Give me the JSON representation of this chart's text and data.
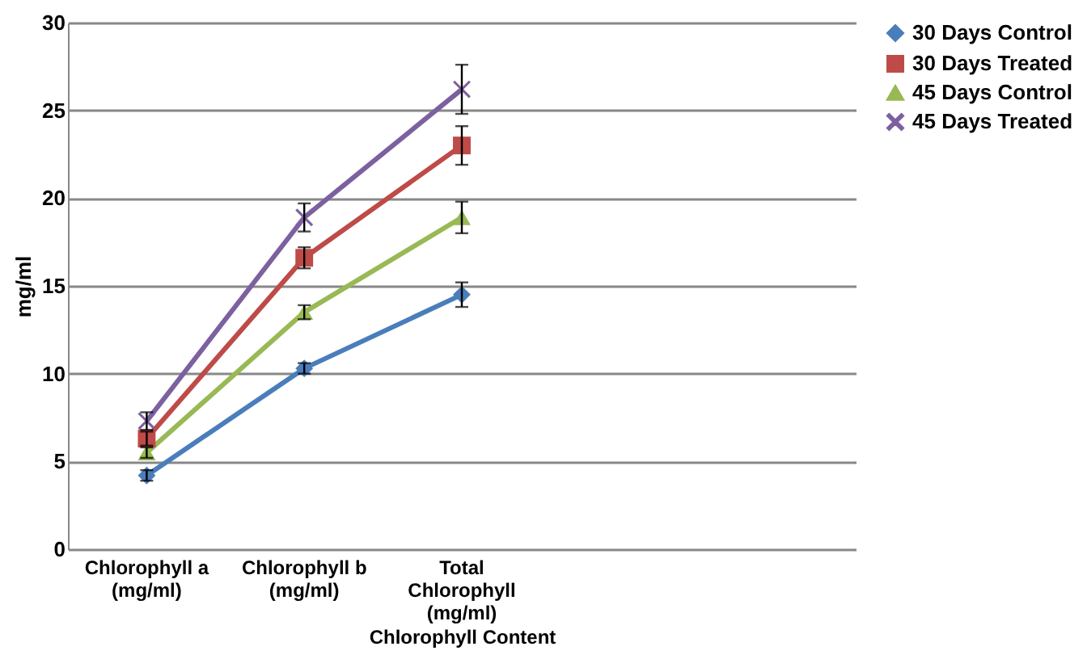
{
  "chart_data": {
    "type": "line",
    "xlabel": "Chlorophyll Content",
    "ylabel": "mg/ml",
    "categories": [
      "Chlorophyll a (mg/ml)",
      "Chlorophyll b (mg/ml)",
      "Total Chlorophyll (mg/ml)",
      null,
      null
    ],
    "series": [
      {
        "name": "30 Days Control",
        "color": "#4a7ebb",
        "marker": "diamond",
        "values": [
          4.2,
          10.3,
          14.5,
          null,
          null
        ],
        "errors": [
          0.3,
          0.3,
          0.7,
          null,
          null
        ]
      },
      {
        "name": "30 Days Treated",
        "color": "#be4b48",
        "marker": "square",
        "values": [
          6.3,
          16.6,
          23.0,
          null,
          null
        ],
        "errors": [
          0.4,
          0.6,
          1.1,
          null,
          null
        ]
      },
      {
        "name": "45 Days Control",
        "color": "#98b954",
        "marker": "triangle",
        "values": [
          5.5,
          13.5,
          18.9,
          null,
          null
        ],
        "errors": [
          0.3,
          0.4,
          0.9,
          null,
          null
        ]
      },
      {
        "name": "45 Days Treated",
        "color": "#7d60a0",
        "marker": "cross",
        "values": [
          7.3,
          18.9,
          26.2,
          null,
          null
        ],
        "errors": [
          0.5,
          0.8,
          1.4,
          null,
          null
        ]
      }
    ],
    "ylim": [
      0,
      30
    ],
    "yticks": [
      0,
      5,
      10,
      15,
      20,
      25,
      30
    ],
    "grid": "y",
    "legend": "right"
  }
}
